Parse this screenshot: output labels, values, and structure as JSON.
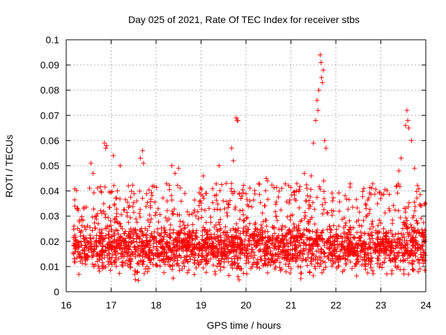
{
  "chart_data": {
    "type": "scatter",
    "title": "Day 025 of 2021, Rate Of TEC Index for receiver stbs",
    "xlabel": "GPS time / hours",
    "ylabel": "ROTI / TECUs",
    "xlim": [
      16,
      24
    ],
    "ylim": [
      0,
      0.1
    ],
    "xticks": [
      "16",
      "17",
      "18",
      "19",
      "20",
      "21",
      "22",
      "23",
      "24"
    ],
    "yticks": [
      "0",
      "0.01",
      "0.02",
      "0.03",
      "0.04",
      "0.05",
      "0.06",
      "0.07",
      "0.08",
      "0.09",
      "0.1"
    ],
    "grid": true,
    "marker": "+",
    "color": "#ff0000",
    "series": [
      {
        "name": "ROTI",
        "points": [
          [
            16.85,
            0.059
          ],
          [
            16.88,
            0.057
          ],
          [
            16.9,
            0.058
          ],
          [
            16.55,
            0.051
          ],
          [
            16.6,
            0.047
          ],
          [
            17.05,
            0.054
          ],
          [
            17.2,
            0.05
          ],
          [
            17.7,
            0.056
          ],
          [
            17.65,
            0.053
          ],
          [
            17.72,
            0.051
          ],
          [
            18.35,
            0.05
          ],
          [
            18.42,
            0.047
          ],
          [
            18.5,
            0.049
          ],
          [
            19.05,
            0.046
          ],
          [
            19.4,
            0.05
          ],
          [
            19.68,
            0.057
          ],
          [
            19.72,
            0.052
          ],
          [
            19.78,
            0.069
          ],
          [
            19.8,
            0.068
          ],
          [
            19.82,
            0.068
          ],
          [
            20.45,
            0.045
          ],
          [
            20.48,
            0.044
          ],
          [
            21.3,
            0.047
          ],
          [
            21.45,
            0.046
          ],
          [
            21.5,
            0.059
          ],
          [
            21.55,
            0.068
          ],
          [
            21.58,
            0.076
          ],
          [
            21.6,
            0.072
          ],
          [
            21.62,
            0.08
          ],
          [
            21.65,
            0.094
          ],
          [
            21.67,
            0.091
          ],
          [
            21.68,
            0.085
          ],
          [
            21.7,
            0.083
          ],
          [
            21.72,
            0.088
          ],
          [
            21.75,
            0.06
          ],
          [
            21.78,
            0.057
          ],
          [
            21.73,
            0.044
          ],
          [
            23.4,
            0.048
          ],
          [
            23.45,
            0.053
          ],
          [
            23.55,
            0.066
          ],
          [
            23.58,
            0.072
          ],
          [
            23.6,
            0.068
          ],
          [
            23.62,
            0.065
          ],
          [
            23.68,
            0.06
          ],
          [
            23.75,
            0.049
          ]
        ],
        "background_band": {
          "min": 0.003,
          "max": 0.035,
          "mean": 0.018
        }
      }
    ]
  }
}
